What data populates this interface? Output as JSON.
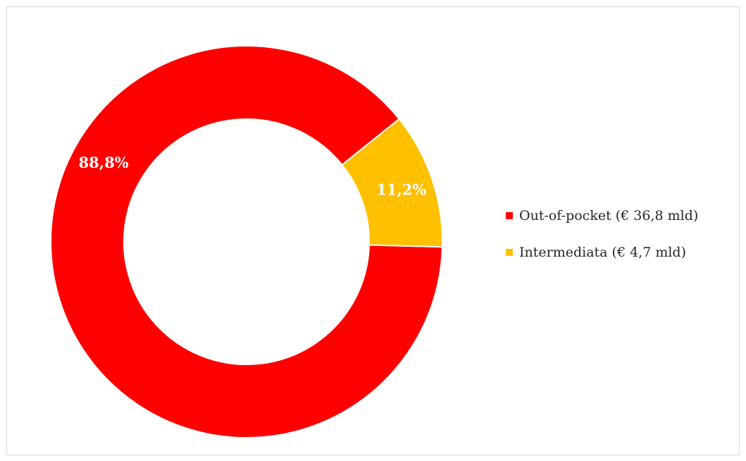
{
  "chart_data": {
    "type": "pie",
    "subtype": "donut",
    "title": "",
    "categories": [
      "Out-of-pocket (€ 36,8 mld)",
      "Intermediata (€ 4,7 mld)"
    ],
    "values": [
      88.8,
      11.2
    ],
    "data_labels": [
      "88,8%",
      "11,2%"
    ],
    "colors": [
      "#ff0000",
      "#ffc000"
    ],
    "legend_position": "right",
    "start_angle_deg": 91.5
  }
}
